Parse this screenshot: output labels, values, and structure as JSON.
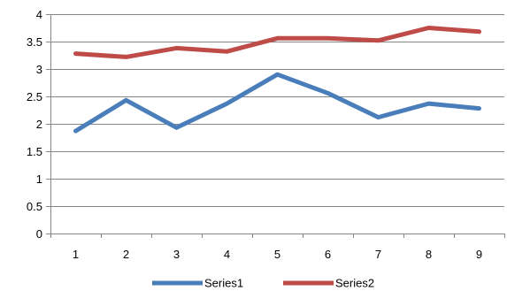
{
  "chart_data": {
    "type": "line",
    "title": "",
    "xlabel": "",
    "ylabel": "",
    "categories": [
      "1",
      "2",
      "3",
      "4",
      "5",
      "6",
      "7",
      "8",
      "9"
    ],
    "ylim": [
      0,
      4
    ],
    "y_ticks": [
      "0",
      "0.5",
      "1",
      "1.5",
      "2",
      "2.5",
      "3",
      "3.5",
      "4"
    ],
    "grid": "horizontal major gridlines",
    "legend_position": "bottom",
    "series": [
      {
        "name": "Series1",
        "color": "#4a7ebb",
        "values": [
          1.87,
          2.43,
          1.93,
          2.37,
          2.9,
          2.56,
          2.12,
          2.37,
          2.28
        ]
      },
      {
        "name": "Series2",
        "color": "#be4b48",
        "values": [
          3.28,
          3.22,
          3.38,
          3.32,
          3.56,
          3.56,
          3.52,
          3.75,
          3.68
        ]
      }
    ]
  }
}
